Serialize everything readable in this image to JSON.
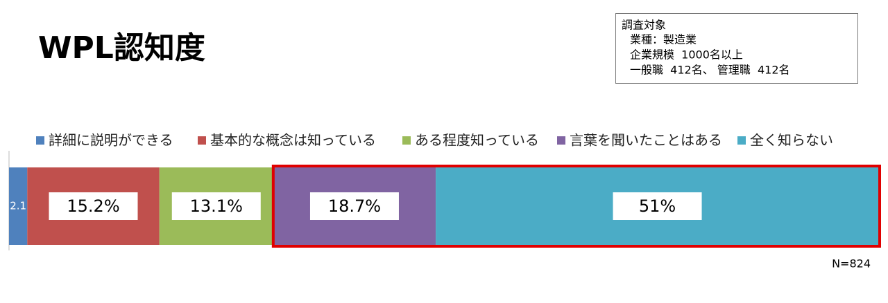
{
  "chart_data": {
    "type": "stacked-bar",
    "title": "WPL認知度",
    "notes": {
      "heading": "調査対象",
      "lines": [
        "業種：製造業",
        "企業規模  1000名以上",
        "一般職  412名、 管理職  412名"
      ]
    },
    "sample_size": "N=824",
    "series": [
      {
        "name": "詳細に説明ができる",
        "color": "#4F81BD",
        "values": [
          2.1
        ],
        "value_labels": [
          "2.1"
        ]
      },
      {
        "name": "基本的な概念は知っている",
        "color": "#C0504D",
        "values": [
          15.2
        ],
        "value_labels": [
          "15.2%"
        ]
      },
      {
        "name": "ある程度知っている",
        "color": "#9BBB59",
        "values": [
          13.1
        ],
        "value_labels": [
          "13.1%"
        ]
      },
      {
        "name": "言葉を聞いたことはある",
        "color": "#8064A2",
        "values": [
          18.7
        ],
        "value_labels": [
          "18.7%"
        ]
      },
      {
        "name": "全く知らない",
        "color": "#4BACC6",
        "values": [
          51
        ],
        "value_labels": [
          "51%"
        ]
      }
    ]
  }
}
